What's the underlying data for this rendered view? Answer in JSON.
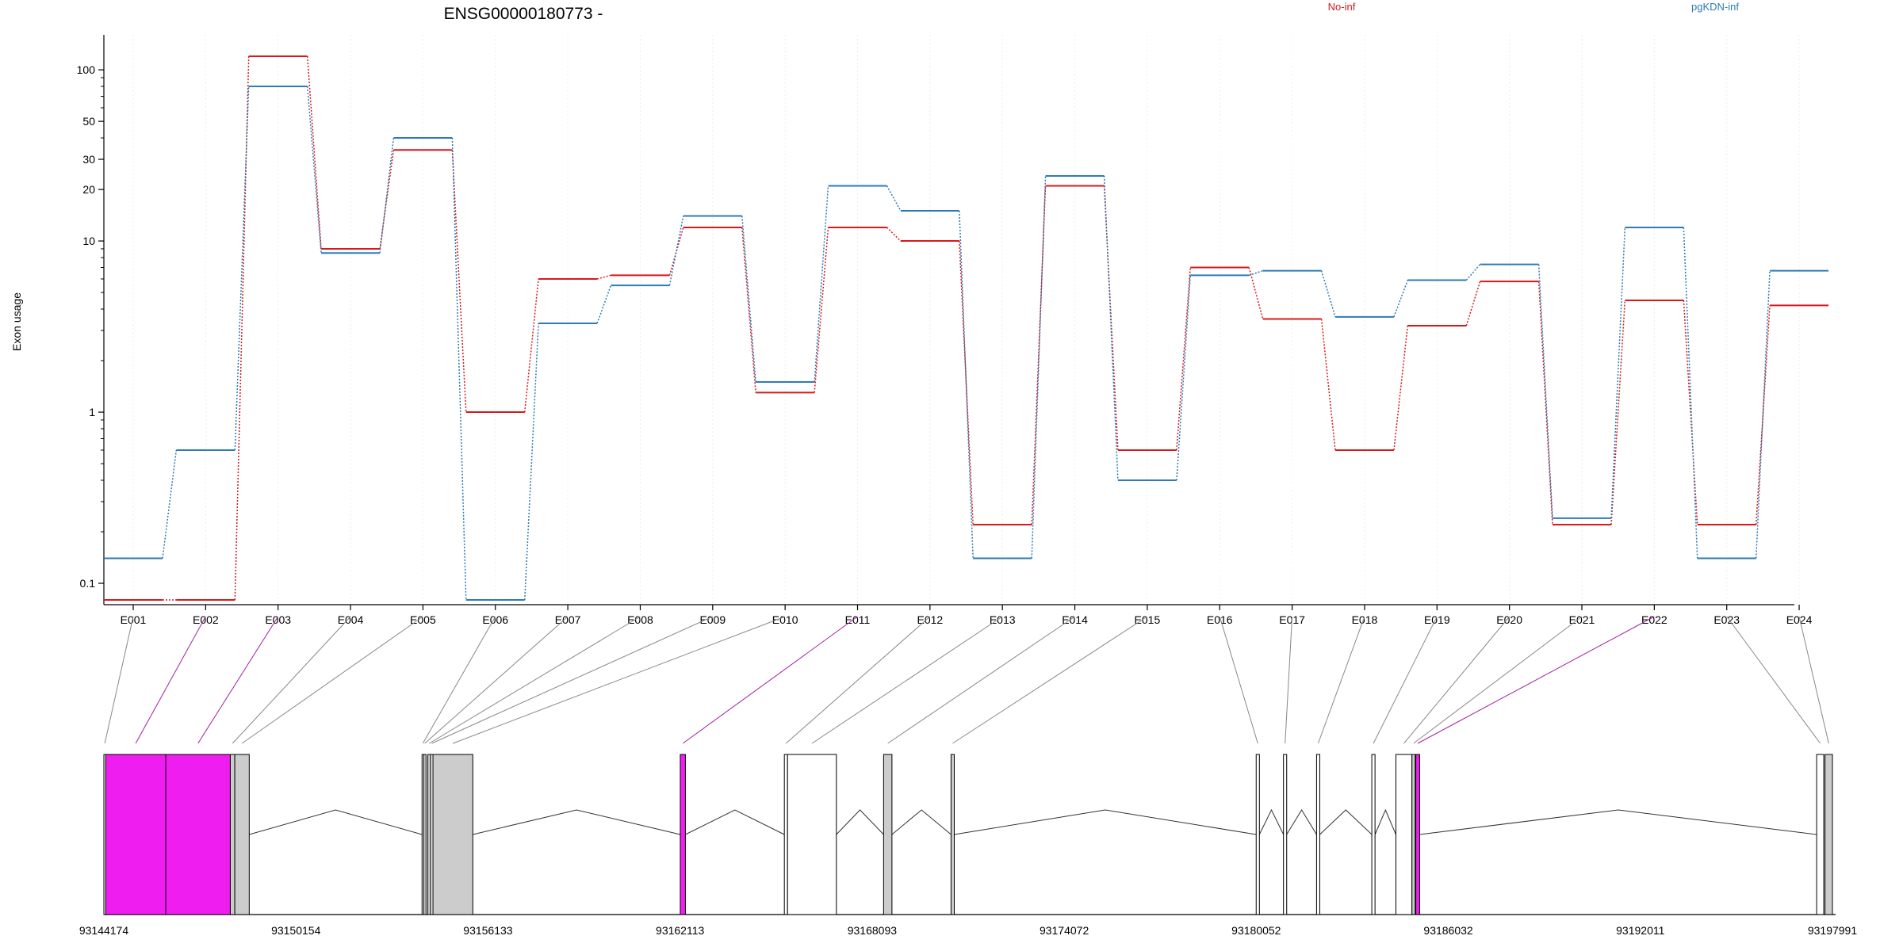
{
  "chart_data": {
    "type": "line",
    "title": "ENSG00000180773 -",
    "ylabel": "Exon usage",
    "xlabel": "",
    "yscale": "log",
    "ylim": [
      0.075,
      160
    ],
    "yticks": [
      {
        "value": 0.1,
        "label": "0.1"
      },
      {
        "value": 1,
        "label": "1"
      },
      {
        "value": 10,
        "label": "10"
      },
      {
        "value": 20,
        "label": "20"
      },
      {
        "value": 30,
        "label": "30"
      },
      {
        "value": 50,
        "label": "50"
      },
      {
        "value": 100,
        "label": "100"
      }
    ],
    "categories": [
      "E001",
      "E002",
      "E003",
      "E004",
      "E005",
      "E006",
      "E007",
      "E008",
      "E009",
      "E010",
      "E011",
      "E012",
      "E013",
      "E014",
      "E015",
      "E016",
      "E017",
      "E018",
      "E019",
      "E020",
      "E021",
      "E022",
      "E023",
      "E024"
    ],
    "legend": [
      {
        "name": "No-inf",
        "color": "#d7191c"
      },
      {
        "name": "pgKDN-inf",
        "color": "#2c7bb6"
      }
    ],
    "series": [
      {
        "name": "No-inf",
        "color": "#d7191c",
        "values": [
          0.08,
          0.08,
          120,
          9,
          34,
          1,
          6,
          6.3,
          12,
          1.3,
          12,
          10,
          0.22,
          21,
          0.6,
          7,
          3.5,
          0.6,
          3.2,
          5.8,
          0.22,
          4.5,
          0.22,
          4.2
        ]
      },
      {
        "name": "pgKDN-inf",
        "color": "#2c7bb6",
        "values": [
          0.14,
          0.6,
          80,
          8.5,
          40,
          0.08,
          3.3,
          5.5,
          14,
          1.5,
          21,
          15,
          0.14,
          24,
          0.4,
          6.3,
          6.7,
          3.6,
          5.9,
          7.3,
          0.24,
          12,
          0.14,
          6.7
        ]
      }
    ],
    "gene_model": {
      "genomic_ticks": [
        "93144174",
        "93150154",
        "93156133",
        "93162113",
        "93168093",
        "93174072",
        "93180052",
        "93186032",
        "93192011",
        "93197991"
      ],
      "genomic_range": [
        93144174,
        93197991
      ],
      "highlight_color": "#f01df0",
      "exons": [
        {
          "id": "E001",
          "start": 93144174,
          "end": 93144230,
          "fill": "white",
          "highlight": false
        },
        {
          "id": "E002",
          "start": 93144230,
          "end": 93146100,
          "fill": "highlight",
          "highlight": true
        },
        {
          "id": "E003",
          "start": 93146100,
          "end": 93148110,
          "fill": "highlight",
          "highlight": true
        },
        {
          "id": "E004",
          "start": 93148110,
          "end": 93148250,
          "fill": "gray",
          "highlight": false
        },
        {
          "id": "E005",
          "start": 93148250,
          "end": 93148700,
          "fill": "gray",
          "highlight": false
        },
        {
          "id": "E006",
          "start": 93154080,
          "end": 93154130,
          "fill": "white",
          "highlight": false
        },
        {
          "id": "E007",
          "start": 93154130,
          "end": 93154200,
          "fill": "gray",
          "highlight": false
        },
        {
          "id": "E008",
          "start": 93154260,
          "end": 93154350,
          "fill": "gray",
          "highlight": false
        },
        {
          "id": "E009",
          "start": 93154350,
          "end": 93154420,
          "fill": "white",
          "highlight": false
        },
        {
          "id": "E010",
          "start": 93154420,
          "end": 93155660,
          "fill": "gray",
          "highlight": false
        },
        {
          "id": "E011",
          "start": 93162120,
          "end": 93162280,
          "fill": "highlight",
          "highlight": true
        },
        {
          "id": "E012",
          "start": 93165360,
          "end": 93165460,
          "fill": "white",
          "highlight": false
        },
        {
          "id": "E013",
          "start": 93165460,
          "end": 93166980,
          "fill": "white",
          "highlight": false
        },
        {
          "id": "E014",
          "start": 93168450,
          "end": 93168710,
          "fill": "gray",
          "highlight": false
        },
        {
          "id": "E015",
          "start": 93170550,
          "end": 93170650,
          "fill": "gray",
          "highlight": false
        },
        {
          "id": "E016",
          "start": 93180050,
          "end": 93180150,
          "fill": "white",
          "highlight": false
        },
        {
          "id": "E017",
          "start": 93180900,
          "end": 93181000,
          "fill": "white",
          "highlight": false
        },
        {
          "id": "E018",
          "start": 93181930,
          "end": 93182030,
          "fill": "white",
          "highlight": false
        },
        {
          "id": "E019",
          "start": 93183650,
          "end": 93183750,
          "fill": "white",
          "highlight": false
        },
        {
          "id": "E020",
          "start": 93184400,
          "end": 93184900,
          "fill": "white",
          "highlight": false
        },
        {
          "id": "E021",
          "start": 93184900,
          "end": 93185000,
          "fill": "gray",
          "highlight": false
        },
        {
          "id": "E022",
          "start": 93185020,
          "end": 93185140,
          "fill": "highlight",
          "highlight": true
        },
        {
          "id": "E023",
          "start": 93197500,
          "end": 93197720,
          "fill": "white",
          "highlight": false
        },
        {
          "id": "E024",
          "start": 93197760,
          "end": 93197991,
          "fill": "gray",
          "highlight": false
        }
      ]
    }
  }
}
